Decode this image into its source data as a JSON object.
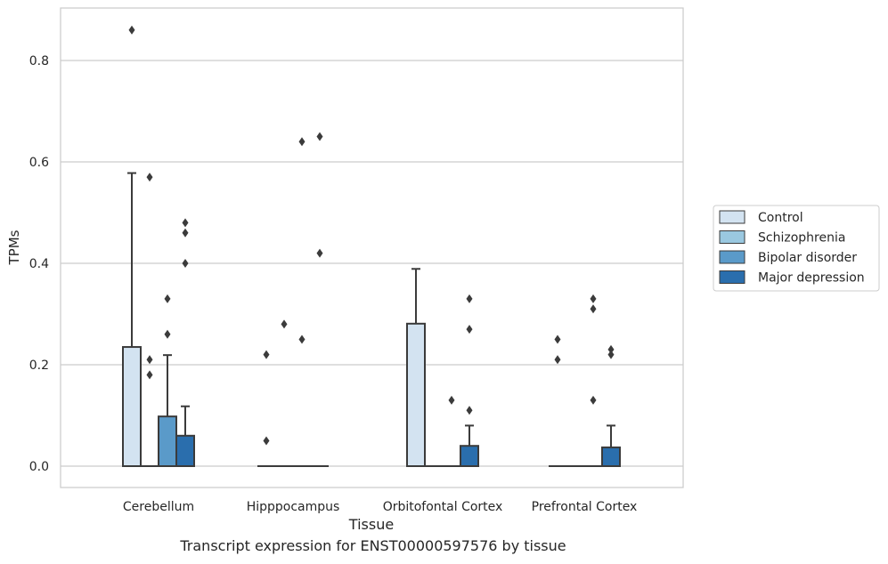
{
  "chart_data": {
    "type": "box",
    "xlabel": "Tissue",
    "ylabel": "TPMs",
    "caption": "Transcript expression for ENST00000597576 by tissue",
    "ylim": [
      -0.042,
      0.905
    ],
    "yticks": [
      "0.0",
      "0.2",
      "0.4",
      "0.6",
      "0.8"
    ],
    "ytick_values": [
      0.0,
      0.2,
      0.4,
      0.6,
      0.8
    ],
    "grid": true,
    "legend_position": "right",
    "categories": [
      "Cerebellum",
      "Hipppocampus",
      "Orbitofontal Cortex",
      "Prefrontal Cortex"
    ],
    "series": [
      {
        "name": "Control",
        "color": "#d3e3f1",
        "boxes": [
          {
            "q1": 0.0,
            "median": 0.0,
            "q3": 0.235,
            "whisker_low": 0.0,
            "whisker_high": 0.578,
            "outliers": [
              0.86
            ]
          },
          {
            "q1": 0.0,
            "median": 0.0,
            "q3": 0.0,
            "whisker_low": 0.0,
            "whisker_high": 0.0,
            "outliers": [
              0.22,
              0.05
            ]
          },
          {
            "q1": 0.0,
            "median": 0.0,
            "q3": 0.281,
            "whisker_low": 0.0,
            "whisker_high": 0.389,
            "outliers": []
          },
          {
            "q1": 0.0,
            "median": 0.0,
            "q3": 0.0,
            "whisker_low": 0.0,
            "whisker_high": 0.0,
            "outliers": [
              0.25,
              0.21
            ]
          }
        ]
      },
      {
        "name": "Schizophrenia",
        "color": "#9ac8e0",
        "boxes": [
          {
            "q1": 0.0,
            "median": 0.0,
            "q3": 0.0,
            "whisker_low": 0.0,
            "whisker_high": 0.0,
            "outliers": [
              0.57,
              0.21,
              0.18
            ]
          },
          {
            "q1": 0.0,
            "median": 0.0,
            "q3": 0.0,
            "whisker_low": 0.0,
            "whisker_high": 0.0,
            "outliers": [
              0.28
            ]
          },
          {
            "q1": 0.0,
            "median": 0.0,
            "q3": 0.0,
            "whisker_low": 0.0,
            "whisker_high": 0.0,
            "outliers": []
          },
          {
            "q1": 0.0,
            "median": 0.0,
            "q3": 0.0,
            "whisker_low": 0.0,
            "whisker_high": 0.0,
            "outliers": []
          }
        ]
      },
      {
        "name": "Bipolar disorder",
        "color": "#5a9ac9",
        "boxes": [
          {
            "q1": 0.0,
            "median": 0.0,
            "q3": 0.098,
            "whisker_low": 0.0,
            "whisker_high": 0.219,
            "outliers": [
              0.33,
              0.26
            ]
          },
          {
            "q1": 0.0,
            "median": 0.0,
            "q3": 0.0,
            "whisker_low": 0.0,
            "whisker_high": 0.0,
            "outliers": [
              0.64,
              0.25
            ]
          },
          {
            "q1": 0.0,
            "median": 0.0,
            "q3": 0.0,
            "whisker_low": 0.0,
            "whisker_high": 0.0,
            "outliers": [
              0.13
            ]
          },
          {
            "q1": 0.0,
            "median": 0.0,
            "q3": 0.0,
            "whisker_low": 0.0,
            "whisker_high": 0.0,
            "outliers": [
              0.33,
              0.31,
              0.13
            ]
          }
        ]
      },
      {
        "name": "Major depression",
        "color": "#2a6ead",
        "boxes": [
          {
            "q1": 0.0,
            "median": 0.0,
            "q3": 0.06,
            "whisker_low": 0.0,
            "whisker_high": 0.118,
            "outliers": [
              0.48,
              0.46,
              0.4
            ]
          },
          {
            "q1": 0.0,
            "median": 0.0,
            "q3": 0.0,
            "whisker_low": 0.0,
            "whisker_high": 0.0,
            "outliers": [
              0.65,
              0.42
            ]
          },
          {
            "q1": 0.0,
            "median": 0.0,
            "q3": 0.04,
            "whisker_low": 0.0,
            "whisker_high": 0.08,
            "outliers": [
              0.33,
              0.27,
              0.11
            ]
          },
          {
            "q1": 0.0,
            "median": 0.0,
            "q3": 0.037,
            "whisker_low": 0.0,
            "whisker_high": 0.08,
            "outliers": [
              0.23,
              0.22
            ]
          }
        ]
      }
    ]
  }
}
